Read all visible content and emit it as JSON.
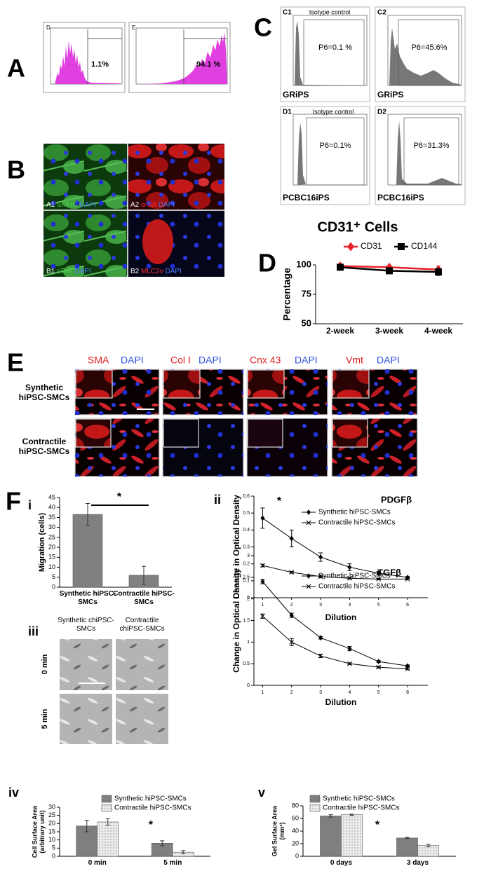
{
  "panel_labels": {
    "A": "A",
    "B": "B",
    "C": "C",
    "D": "D",
    "E": "E",
    "F": "F",
    "F_i": "i",
    "F_ii": "ii",
    "F_iii": "iii",
    "F_iv": "iv",
    "F_v": "v"
  },
  "panel_a": [
    {
      "tag": "D",
      "percent": "1.1%"
    },
    {
      "tag": "E",
      "percent": "94.1 %"
    }
  ],
  "panel_b": [
    {
      "tag": "A1",
      "marker": "SMHC",
      "counterstain": "DAPI"
    },
    {
      "tag": "A2",
      "marker": "α-SA",
      "counterstain": "DAPI"
    },
    {
      "tag": "B1",
      "marker": "cTnT",
      "counterstain": "DAPI"
    },
    {
      "tag": "B2",
      "marker": "MLC2v",
      "counterstain": "DAPI"
    }
  ],
  "panel_c": [
    {
      "tag": "C1",
      "title": "Isotype control",
      "gate": "P6=0.1 %",
      "cell_line": "GRiPS"
    },
    {
      "tag": "C2",
      "gate": "P6=45.6%",
      "cell_line": "GRiPS"
    },
    {
      "tag": "D1",
      "title": "Isotype control",
      "gate": "P6=0.1%",
      "cell_line": "PCBC16iPS"
    },
    {
      "tag": "D2",
      "gate": "P6=31.3%",
      "cell_line": "PCBC16iPS"
    }
  ],
  "panel_e": {
    "columns": [
      {
        "marker": "SMA",
        "counterstain": "DAPI"
      },
      {
        "marker": "Col I",
        "counterstain": "DAPI"
      },
      {
        "marker": "Cnx 43",
        "counterstain": "DAPI"
      },
      {
        "marker": "Vmt",
        "counterstain": "DAPI"
      }
    ],
    "rows": [
      "Synthetic hiPSC-SMCs",
      "Contractile hiPSC-SMCs"
    ]
  },
  "panel_f_iii": {
    "columns": [
      "Synthetic chiPSC-SMCs",
      "Contractile chiPSC-SMCs"
    ],
    "rows": [
      "0 min",
      "5 min"
    ]
  },
  "chart_data": [
    {
      "type": "line",
      "title": "CD31⁺ Cells",
      "ylabel": "Percentage",
      "categories": [
        "2-week",
        "3-week",
        "4-week"
      ],
      "ylim": [
        50,
        100
      ],
      "yticks": [
        50,
        75,
        100
      ],
      "series": [
        {
          "name": "CD31",
          "color": "#e8202a",
          "marker": "diamond",
          "values": [
            99,
            98,
            96
          ],
          "errors": [
            1,
            1,
            3
          ]
        },
        {
          "name": "CD144",
          "color": "#000000",
          "marker": "square",
          "values": [
            98,
            95,
            94
          ],
          "errors": [
            1,
            1,
            3
          ]
        }
      ]
    },
    {
      "type": "bar",
      "ylabel": "Migration (cells)",
      "categories": [
        "Synthetic hiPSC-SMCs",
        "Contractile hiPSC-SMCs"
      ],
      "values": [
        36.5,
        6
      ],
      "errors": [
        5.5,
        4.5
      ],
      "color": "#808080",
      "ylim": [
        0,
        45
      ],
      "yticks": [
        0,
        5,
        10,
        15,
        20,
        25,
        30,
        35,
        40,
        45
      ],
      "annotation": "*"
    },
    {
      "type": "line",
      "title": "PDGFβ",
      "xlabel": "Dilution",
      "ylabel": "Change in Optical Density",
      "x": [
        1,
        2,
        3,
        4,
        5,
        6
      ],
      "xlim": [
        0.7,
        6.7
      ],
      "xticks": [
        1,
        2,
        3,
        4,
        5,
        6
      ],
      "ylim": [
        0,
        0.6
      ],
      "yticks": [
        0,
        0.1,
        0.2,
        0.3,
        0.4,
        0.5,
        0.6
      ],
      "annotation": "*",
      "series": [
        {
          "name": "Synthetic hiPSC-SMCs",
          "color": "#000000",
          "marker": "diamond",
          "values": [
            0.47,
            0.35,
            0.24,
            0.18,
            0.145,
            0.12
          ],
          "errors": [
            0.06,
            0.05,
            0.025,
            0.02,
            0.01,
            0.005
          ]
        },
        {
          "name": "Contractile hiPSC-SMCs",
          "color": "#000000",
          "marker": "x",
          "values": [
            0.19,
            0.15,
            0.125,
            0.115,
            0.11,
            0.11
          ],
          "errors": [
            0.008,
            0.005,
            0.008,
            0.005,
            0.004,
            0.004
          ]
        }
      ]
    },
    {
      "type": "line",
      "title": "TGFβ",
      "xlabel": "Dilution",
      "ylabel": "Change in Optical Density",
      "x": [
        1,
        2,
        3,
        4,
        5,
        6
      ],
      "xlim": [
        0.7,
        6.7
      ],
      "xticks": [
        1,
        2,
        3,
        4,
        5,
        6
      ],
      "ylim": [
        0,
        3
      ],
      "yticks": [
        0,
        0.5,
        1,
        1.5,
        2,
        2.5,
        3
      ],
      "series": [
        {
          "name": "Synthetic hiPSC-SMCs",
          "color": "#000000",
          "marker": "diamond",
          "values": [
            2.4,
            1.62,
            1.1,
            0.85,
            0.55,
            0.45
          ],
          "errors": [
            0.05,
            0.05,
            0.03,
            0.05,
            0.02,
            0.02
          ]
        },
        {
          "name": "Contractile hiPSC-SMCs",
          "color": "#000000",
          "marker": "x",
          "values": [
            1.6,
            1.0,
            0.68,
            0.5,
            0.42,
            0.38
          ],
          "errors": [
            0.05,
            0.08,
            0.04,
            0.02,
            0.02,
            0.02
          ]
        }
      ]
    },
    {
      "type": "bar",
      "ylabel": [
        "Cell Surface Area",
        "(arbitrary unit)"
      ],
      "categories": [
        "0 min",
        "5 min"
      ],
      "ylim": [
        0,
        30
      ],
      "yticks": [
        0,
        5,
        10,
        15,
        20,
        25,
        30
      ],
      "annotation": "*",
      "series": [
        {
          "name": "Synthetic hiPSC-SMCs",
          "color": "#7f7f7f",
          "values": [
            18.5,
            8
          ],
          "errors": [
            3.5,
            1.5
          ]
        },
        {
          "name": "Contractile hiPSC-SMCs",
          "color": "#ececec",
          "pattern": "dots",
          "values": [
            21,
            2.5
          ],
          "errors": [
            2,
            1
          ]
        }
      ]
    },
    {
      "type": "bar",
      "ylabel": [
        "Gel Surface Area",
        "(mm²)"
      ],
      "categories": [
        "0 days",
        "3 days"
      ],
      "ylim": [
        0,
        80
      ],
      "yticks": [
        0,
        20,
        40,
        60,
        80
      ],
      "annotation": "*",
      "series": [
        {
          "name": "Synthetic hiPSC-SMCs",
          "color": "#7f7f7f",
          "values": [
            64,
            29
          ],
          "errors": [
            2,
            1
          ]
        },
        {
          "name": "Contractile hiPSC-SMCs",
          "color": "#ececec",
          "pattern": "dots",
          "values": [
            66,
            17
          ],
          "errors": [
            1,
            2
          ]
        }
      ]
    }
  ]
}
